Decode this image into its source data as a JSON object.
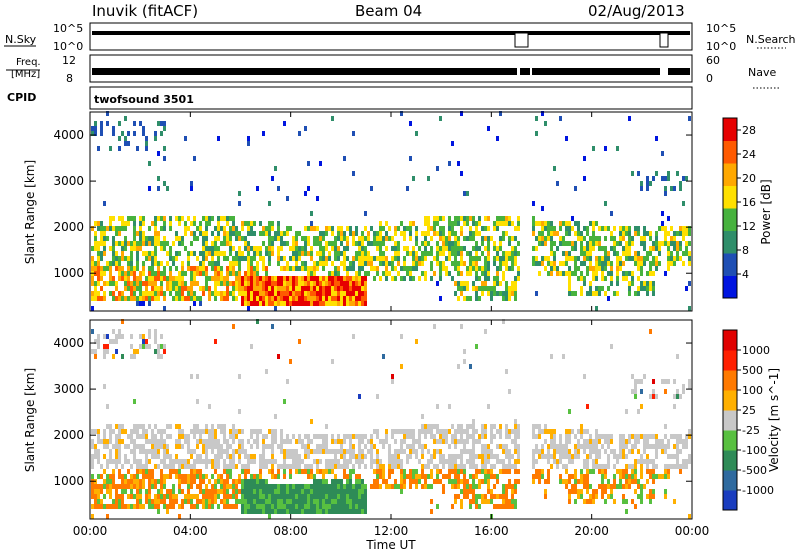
{
  "header": {
    "station": "Inuvik (fitACF)",
    "beam": "Beam 04",
    "date": "02/Aug/2013"
  },
  "panels": {
    "nsky": {
      "left_label": "N.Sky",
      "left_ticks": [
        "10^5",
        "10^0"
      ],
      "right_ticks": [
        "10^5",
        "10^0"
      ],
      "right_label": "N.Search"
    },
    "freq": {
      "left_label_1": "Freq.",
      "left_label_2": "[MHz]",
      "left_ticks": [
        "12",
        "8"
      ],
      "right_ticks": [
        "60",
        "0"
      ],
      "right_label": "Nave"
    },
    "cpid": {
      "label": "CPID",
      "value": "twofsound 3501"
    }
  },
  "chart_data": [
    {
      "type": "heatmap",
      "name": "power",
      "x_ticks": [
        "00:00",
        "04:00",
        "08:00",
        "12:00",
        "16:00",
        "20:00",
        "00:00"
      ],
      "xlabel": "Time UT",
      "ylabel": "Slant Range [km]",
      "y_ticks": [
        1000,
        2000,
        3000,
        4000
      ],
      "ylim": [
        180,
        4500
      ],
      "colorbar": {
        "label": "Power [dB]",
        "ticks": [
          4,
          8,
          12,
          16,
          20,
          24,
          28
        ],
        "range": [
          0,
          30
        ],
        "colors": [
          "#0015e0",
          "#1f4fb4",
          "#2f8e6a",
          "#47b23e",
          "#ffe000",
          "#ffa800",
          "#ff5a00",
          "#e60000"
        ]
      }
    },
    {
      "type": "heatmap",
      "name": "velocity",
      "x_ticks": [
        "00:00",
        "04:00",
        "08:00",
        "12:00",
        "16:00",
        "20:00",
        "00:00"
      ],
      "xlabel": "Time UT",
      "ylabel": "Slant Range [km]",
      "y_ticks": [
        1000,
        2000,
        3000,
        4000
      ],
      "ylim": [
        180,
        4500
      ],
      "colorbar": {
        "label": "Velocity [m s^-1]",
        "ticks": [
          "1000",
          "500",
          "100",
          "25",
          "-25",
          "-100",
          "-500",
          "-1000"
        ],
        "colors": [
          "#1a3dbf",
          "#2f6a9f",
          "#2e8b57",
          "#58c040",
          "#c8c8c8",
          "#ffb000",
          "#ff7a00",
          "#ff2000",
          "#e00000"
        ]
      }
    }
  ]
}
